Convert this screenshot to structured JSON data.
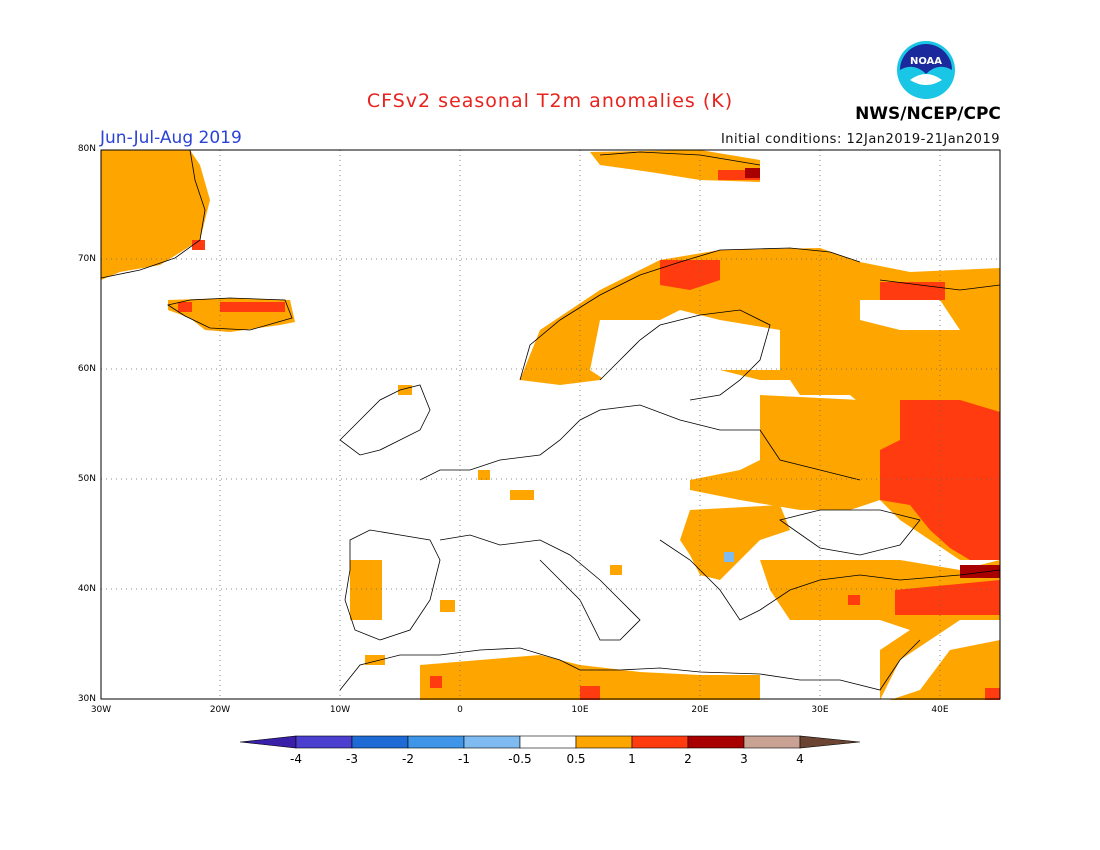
{
  "header": {
    "title": "CFSv2 seasonal T2m anomalies (K)",
    "period": "Jun-Jul-Aug 2019",
    "initial_conditions": "Initial conditions: 12Jan2019-21Jan2019",
    "agency": "NWS/NCEP/CPC",
    "logo_text": "NOAA"
  },
  "map": {
    "lat_labels": [
      "80N",
      "70N",
      "60N",
      "50N",
      "40N",
      "30N"
    ],
    "lon_labels": [
      "30W",
      "20W",
      "10W",
      "0",
      "10E",
      "20E",
      "30E",
      "40E"
    ]
  },
  "colorbar": {
    "labels": [
      "-4",
      "-3",
      "-2",
      "-1",
      "-0.5",
      "0.5",
      "1",
      "2",
      "3",
      "4"
    ],
    "colors": [
      "#3a1fa8",
      "#4b3fd0",
      "#1f6bd6",
      "#3f95e8",
      "#7fbaf0",
      "#ffffff",
      "#ffa500",
      "#ff3b0f",
      "#a80000",
      "#c9a294",
      "#6b4532"
    ]
  },
  "colors": {
    "anomaly_0_5_1": "#ffa500",
    "anomaly_1_2": "#ff3b0f",
    "anomaly_2_3": "#a80000",
    "anomaly_neg_1": "#7fbaf0"
  }
}
